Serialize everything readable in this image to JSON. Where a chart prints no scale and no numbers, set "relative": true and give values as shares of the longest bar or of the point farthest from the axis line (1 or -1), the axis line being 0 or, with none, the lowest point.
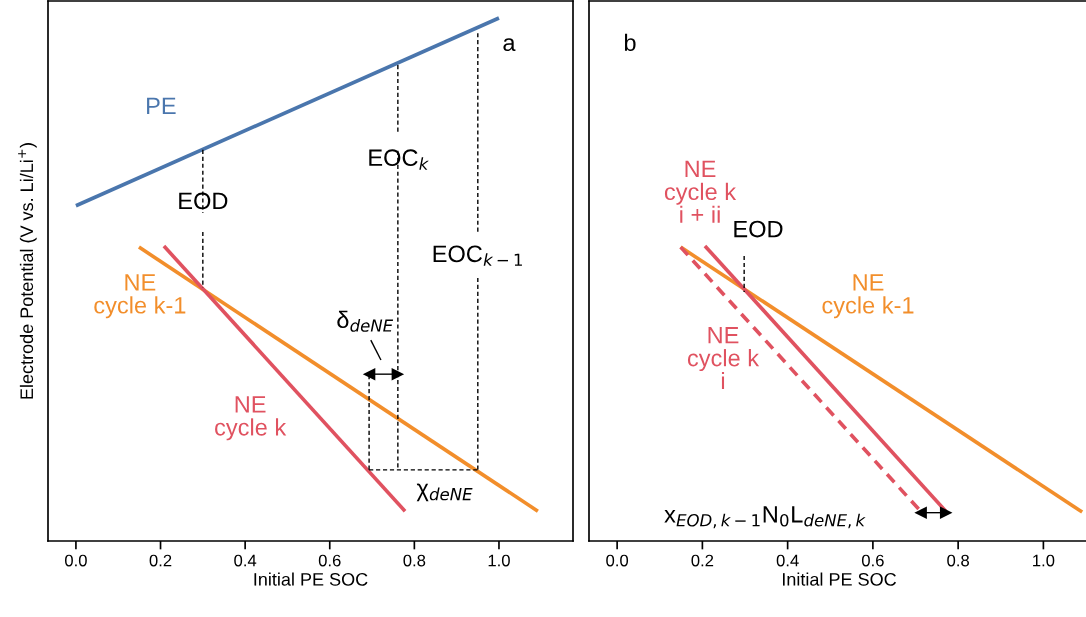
{
  "chart_data": [
    {
      "type": "line",
      "relative": true,
      "tick_labels": "x",
      "xlabel": "Initial PE SOC",
      "ylabel": "Electrode Potential (V vs. Li/Li$^{+}$)",
      "xlim": [
        -0.066,
        1.175
      ],
      "xticks": [
        {
          "value": 0,
          "label": "0.0"
        },
        {
          "value": 0.2,
          "label": "0.2"
        },
        {
          "value": 0.4,
          "label": "0.4"
        },
        {
          "value": 0.6,
          "label": "0.6"
        },
        {
          "value": 0.8,
          "label": "0.8"
        },
        {
          "value": 1,
          "label": "1.0"
        }
      ],
      "series": [
        {
          "name": "PE",
          "color": "#4a76ad",
          "x": [
            0.0,
            1.0
          ],
          "values": [
            0.641,
            1.0
          ],
          "line_style": "solid"
        },
        {
          "name": "NE\ncycle k-1",
          "color": "#f28e2b",
          "x": [
            0.149,
            1.092
          ],
          "values": [
            0.562,
            0.057
          ],
          "line_style": "solid"
        },
        {
          "name": "NE\ncycle k",
          "color": "#e05260",
          "x": [
            0.208,
            0.778
          ],
          "values": [
            0.564,
            0.057
          ],
          "line_style": "solid"
        },
        {
          "color": "#000000",
          "x": [
            0.3,
            0.3
          ],
          "values": [
            0.748,
            0.627
          ],
          "line_style": "dashed"
        },
        {
          "color": "#000000",
          "x": [
            0.3,
            0.3
          ],
          "values": [
            0.591,
            0.484
          ],
          "line_style": "dashed"
        },
        {
          "color": "#000000",
          "x": [
            0.761,
            0.761
          ],
          "values": [
            0.91,
            0.78
          ],
          "line_style": "dashed"
        },
        {
          "color": "#000000",
          "x": [
            0.761,
            0.761
          ],
          "values": [
            0.746,
            0.136
          ],
          "line_style": "dashed"
        },
        {
          "color": "#000000",
          "x": [
            0.95,
            0.95
          ],
          "values": [
            0.971,
            0.587
          ],
          "line_style": "dashed"
        },
        {
          "color": "#000000",
          "x": [
            0.95,
            0.95
          ],
          "values": [
            0.503,
            0.136
          ],
          "line_style": "dashed"
        },
        {
          "color": "#000000",
          "x": [
            0.693,
            0.693
          ],
          "values": [
            0.317,
            0.136
          ],
          "line_style": "dashed"
        },
        {
          "color": "#000000",
          "x": [
            0.693,
            0.761
          ],
          "values": [
            0.319,
            0.319
          ],
          "line_style": "solid",
          "marker": "triangle"
        },
        {
          "color": "#000000",
          "x": [
            0.693,
            0.95
          ],
          "values": [
            0.136,
            0.136
          ],
          "line_style": "dashed"
        },
        {
          "color": "#000000",
          "x": [
            0.697,
            0.721
          ],
          "values": [
            0.384,
            0.346
          ],
          "line_style": "solid"
        }
      ],
      "annotations": [
        "a",
        "EOD",
        "EOC$_{k}$",
        "EOC$_{k−1}$",
        "δ$_{deNE}$",
        "χ$_{deNE}$"
      ]
    },
    {
      "type": "line",
      "relative": true,
      "tick_labels": "x",
      "xlabel": "Initial PE SOC",
      "xlim": [
        -0.066,
        1.107
      ],
      "xticks": [
        {
          "value": 0,
          "label": "0.0"
        },
        {
          "value": 0.2,
          "label": "0.2"
        },
        {
          "value": 0.4,
          "label": "0.4"
        },
        {
          "value": 0.6,
          "label": "0.6"
        },
        {
          "value": 0.8,
          "label": "0.8"
        },
        {
          "value": 1,
          "label": "1.0"
        }
      ],
      "series": [
        {
          "name": "NE\ncycle k-1",
          "color": "#f28e2b",
          "x": [
            0.149,
            1.091
          ],
          "values": [
            0.996,
            0.098
          ],
          "line_style": "solid"
        },
        {
          "name": "NE\ncycle k\ni + ii",
          "color": "#e05260",
          "x": [
            0.206,
            0.771
          ],
          "values": [
            1.0,
            0.101
          ],
          "line_style": "solid"
        },
        {
          "name": "NE\ncycle k\ni",
          "color": "#e05260",
          "x": [
            0.149,
            0.712
          ],
          "values": [
            0.996,
            0.101
          ],
          "line_style": "dashed"
        },
        {
          "color": "#000000",
          "x": [
            0.298,
            0.298
          ],
          "values": [
            0.966,
            0.844
          ],
          "line_style": "dashed"
        },
        {
          "color": "#000000",
          "x": [
            0.712,
            0.772
          ],
          "values": [
            0.096,
            0.096
          ],
          "line_style": "solid",
          "marker": "triangle"
        }
      ],
      "annotations": [
        "b",
        "EOD",
        "x$_{EOD,k−1}$N$_{0}$L$_{deNE,k}$"
      ]
    }
  ]
}
